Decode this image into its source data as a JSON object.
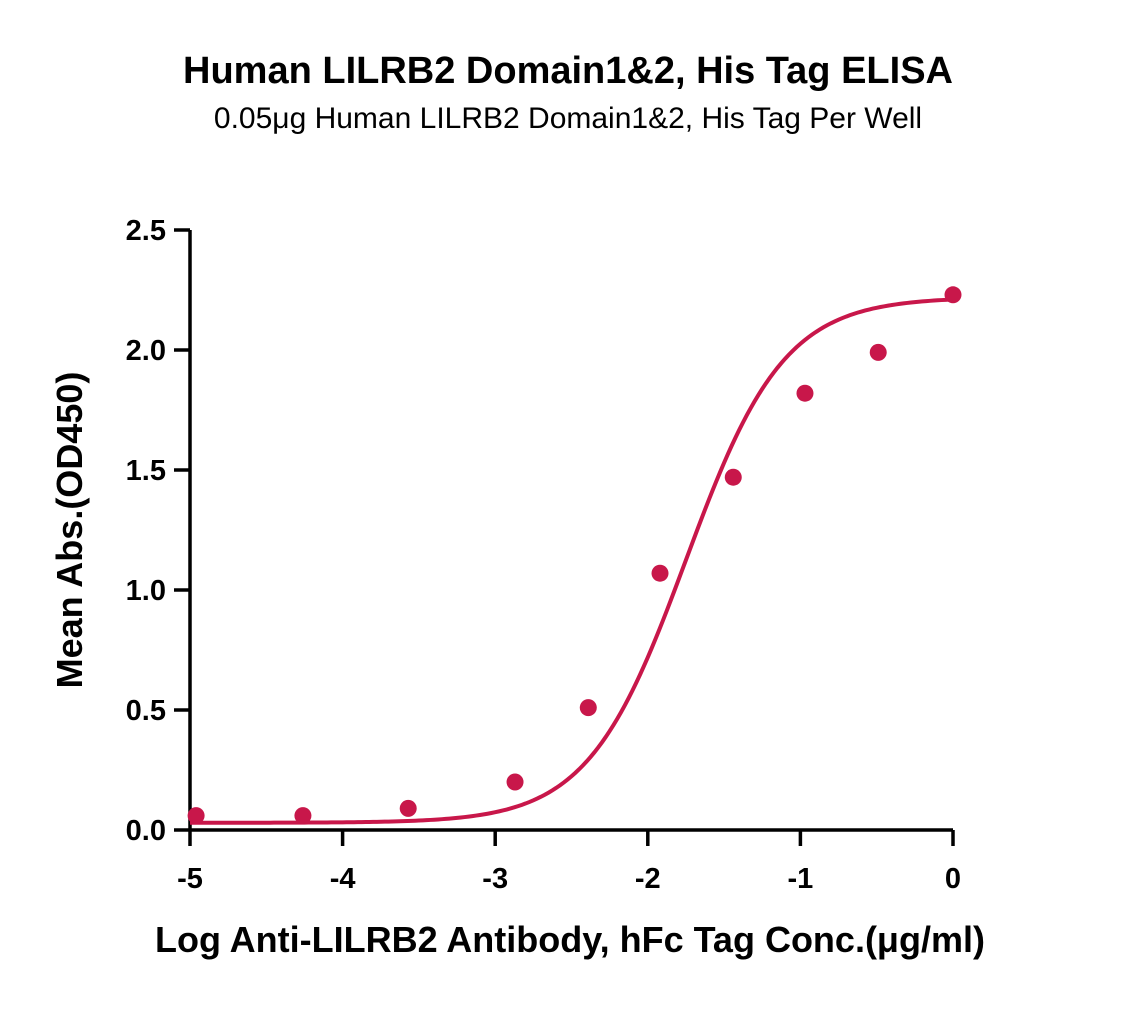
{
  "chart_data": {
    "type": "scatter",
    "title": "Human LILRB2 Domain1&2, His Tag ELISA",
    "subtitle": "0.05μg Human LILRB2 Domain1&2, His Tag Per Well",
    "xlabel": "Log Anti-LILRB2 Antibody, hFc Tag Conc.(μg/ml)",
    "ylabel": "Mean Abs.(OD450)",
    "xlim": [
      -5,
      0
    ],
    "ylim": [
      0,
      2.5
    ],
    "xticks": [
      -5,
      -4,
      -3,
      -2,
      -1,
      0
    ],
    "yticks": [
      0,
      0.5,
      1,
      1.5,
      2,
      2.5
    ],
    "xtick_labels": [
      "-5",
      "-4",
      "-3",
      "-2",
      "-1",
      "0"
    ],
    "ytick_labels": [
      "0.0",
      "0.5",
      "1.0",
      "1.5",
      "2.0",
      "2.5"
    ],
    "grid": false,
    "color": "#c8174a",
    "series": [
      {
        "x": [
          -4.96,
          -4.26,
          -3.57,
          -2.87,
          -2.39,
          -1.92,
          -1.44,
          -0.97,
          -0.49,
          0.0
        ],
        "y": [
          0.06,
          0.06,
          0.09,
          0.2,
          0.51,
          1.07,
          1.47,
          1.82,
          1.99,
          2.23
        ]
      }
    ],
    "fit_curve": {
      "type": "4PL",
      "bottom": 0.03,
      "top": 2.22,
      "logEC50": -1.75,
      "hill": 1.35,
      "x_range": [
        -5,
        0
      ]
    }
  }
}
